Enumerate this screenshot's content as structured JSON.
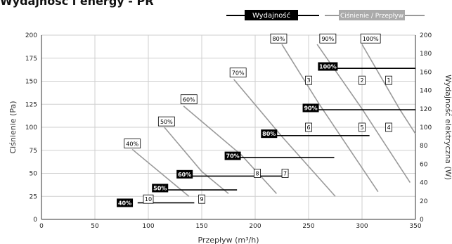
{
  "title": "Wydajność i energy - PR",
  "chart_data": {
    "type": "line",
    "xlabel": "Przepływ (m³/h)",
    "ylabel": "Ciśnienie (Pa)",
    "y2label": "Wydajność elektryczna (W)",
    "xlim": [
      0,
      350
    ],
    "ylim": [
      0,
      200
    ],
    "y2lim": [
      0,
      200
    ],
    "x_ticks": [
      0,
      50,
      100,
      150,
      200,
      250,
      300,
      350
    ],
    "y_ticks": [
      0,
      25,
      50,
      75,
      100,
      125,
      150,
      175,
      200
    ],
    "y2_ticks": [
      0,
      20,
      40,
      60,
      80,
      100,
      120,
      140,
      160,
      180,
      200
    ],
    "grid": true,
    "legend": {
      "position": "top-right",
      "power_label": "Wydajność",
      "pressure_label": "Ciśnienie / Przepływ"
    },
    "pressure_series": [
      {
        "name": "40%",
        "points": [
          [
            85,
            76
          ],
          [
            138,
            25
          ]
        ]
      },
      {
        "name": "50%",
        "points": [
          [
            115,
            100
          ],
          [
            150,
            52
          ],
          [
            175,
            28
          ]
        ]
      },
      {
        "name": "60%",
        "points": [
          [
            133,
            123
          ],
          [
            187,
            70
          ],
          [
            220,
            28
          ]
        ]
      },
      {
        "name": "70%",
        "points": [
          [
            180,
            152
          ],
          [
            225,
            90
          ],
          [
            275,
            25
          ]
        ]
      },
      {
        "name": "80%",
        "points": [
          [
            225,
            190
          ],
          [
            260,
            125
          ],
          [
            315,
            30
          ]
        ]
      },
      {
        "name": "90%",
        "points": [
          [
            258,
            190
          ],
          [
            300,
            120
          ],
          [
            345,
            40
          ]
        ]
      },
      {
        "name": "100%",
        "points": [
          [
            300,
            190
          ],
          [
            335,
            120
          ],
          [
            350,
            93
          ]
        ]
      }
    ],
    "pressure_labels": [
      {
        "text": "40%",
        "x": 85,
        "y": 82
      },
      {
        "text": "50%",
        "x": 117,
        "y": 106
      },
      {
        "text": "60%",
        "x": 138,
        "y": 130
      },
      {
        "text": "70%",
        "x": 184,
        "y": 159
      },
      {
        "text": "80%",
        "x": 222,
        "y": 196
      },
      {
        "text": "90%",
        "x": 268,
        "y": 196
      },
      {
        "text": "100%",
        "x": 308,
        "y": 196
      }
    ],
    "power_series": [
      {
        "name": "40%",
        "x": [
          90,
          143
        ],
        "y": [
          18,
          18
        ]
      },
      {
        "name": "50%",
        "x": [
          106,
          183
        ],
        "y": [
          32,
          32
        ]
      },
      {
        "name": "60%",
        "x": [
          140,
          227
        ],
        "y": [
          47,
          47
        ]
      },
      {
        "name": "70%",
        "x": [
          177,
          274
        ],
        "y": [
          67,
          67
        ]
      },
      {
        "name": "80%",
        "x": [
          211,
          307
        ],
        "y": [
          91,
          91
        ]
      },
      {
        "name": "90%",
        "x": [
          255,
          350
        ],
        "y": [
          119,
          119
        ]
      },
      {
        "name": "100%",
        "x": [
          270,
          350
        ],
        "y": [
          164,
          164
        ]
      }
    ],
    "power_labels": [
      {
        "text": "40%",
        "x": 78,
        "y": 18
      },
      {
        "text": "50%",
        "x": 111,
        "y": 34
      },
      {
        "text": "60%",
        "x": 134,
        "y": 49
      },
      {
        "text": "70%",
        "x": 179,
        "y": 69
      },
      {
        "text": "80%",
        "x": 213,
        "y": 93
      },
      {
        "text": "90%",
        "x": 252,
        "y": 121
      },
      {
        "text": "100%",
        "x": 268,
        "y": 166
      }
    ],
    "point_markers": [
      {
        "text": "1",
        "x": 325,
        "y": 151
      },
      {
        "text": "2",
        "x": 300,
        "y": 151
      },
      {
        "text": "3",
        "x": 250,
        "y": 151
      },
      {
        "text": "4",
        "x": 325,
        "y": 100
      },
      {
        "text": "5",
        "x": 300,
        "y": 100
      },
      {
        "text": "6",
        "x": 250,
        "y": 100
      },
      {
        "text": "7",
        "x": 228,
        "y": 50
      },
      {
        "text": "8",
        "x": 202,
        "y": 50
      },
      {
        "text": "9",
        "x": 150,
        "y": 22
      },
      {
        "text": "10",
        "x": 100,
        "y": 22
      }
    ]
  }
}
